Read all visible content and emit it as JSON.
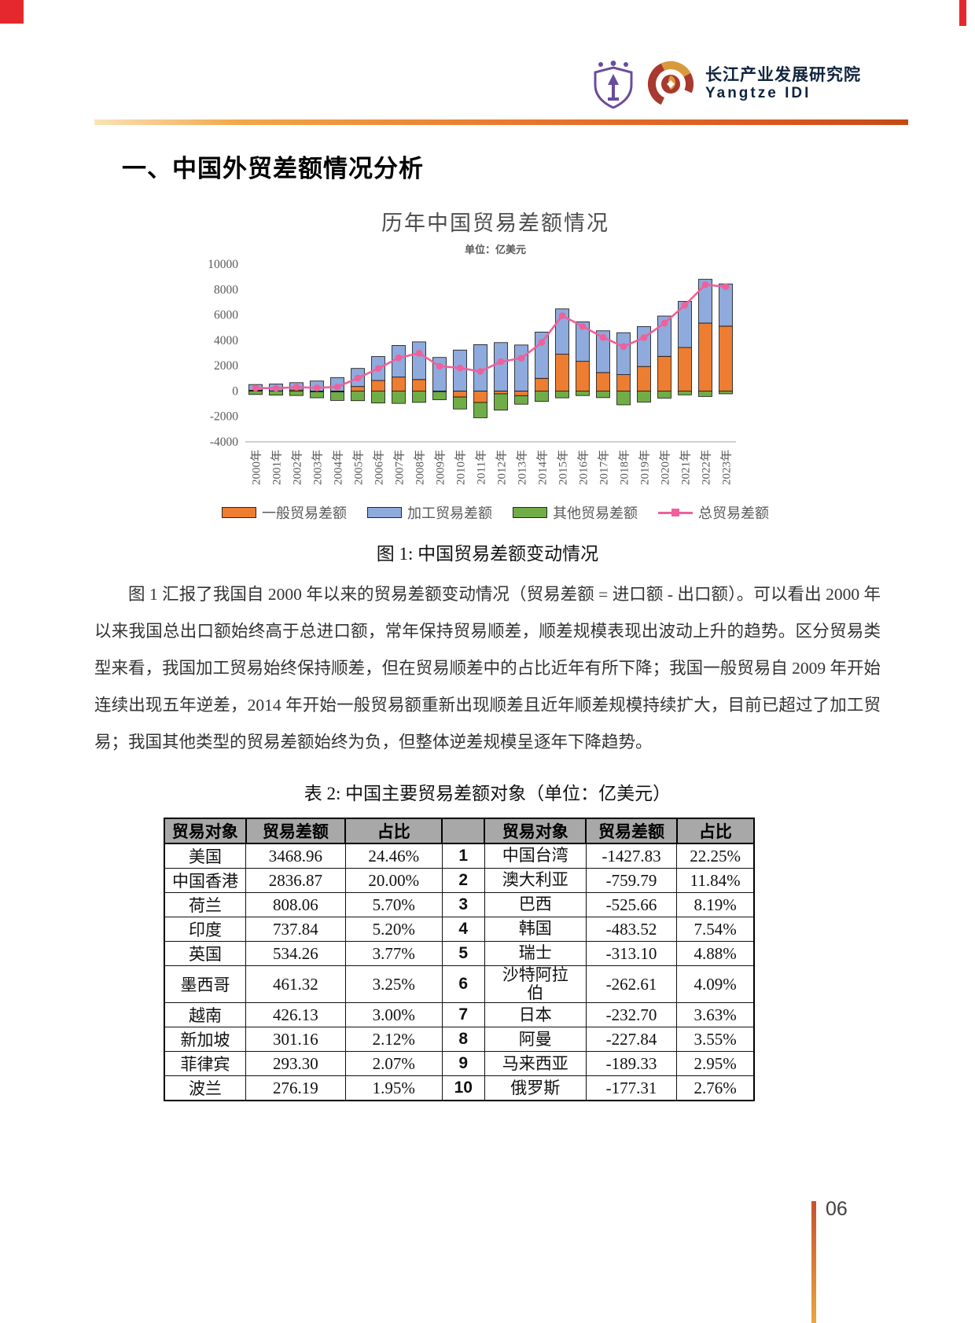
{
  "page": {
    "number": "06"
  },
  "header": {
    "org_cn": "长江产业发展研究院",
    "org_en": "Yangtze IDI"
  },
  "section_title": "一、中国外贸差额情况分析",
  "figure": {
    "caption": "图 1: 中国贸易差额变动情况"
  },
  "paragraph": "图 1 汇报了我国自 2000 年以来的贸易差额变动情况（贸易差额 = 进口额 - 出口额）。可以看出 2000 年以来我国总出口额始终高于总进口额，常年保持贸易顺差，顺差规模表现出波动上升的趋势。区分贸易类型来看，我国加工贸易始终保持顺差，但在贸易顺差中的占比近年有所下降；我国一般贸易自 2009 年开始连续出现五年逆差，2014 年开始一般贸易额重新出现顺差且近年顺差规模持续扩大，目前已超过了加工贸易；我国其他类型的贸易差额始终为负，但整体逆差规模呈逐年下降趋势。",
  "table": {
    "title": "表 2: 中国主要贸易差额对象（单位：亿美元）",
    "headers": [
      "贸易对象",
      "贸易差额",
      "占比",
      "",
      "贸易对象",
      "贸易差额",
      "占比"
    ],
    "rows": [
      [
        "美国",
        "3468.96",
        "24.46%",
        "1",
        "中国台湾",
        "-1427.83",
        "22.25%"
      ],
      [
        "中国香港",
        "2836.87",
        "20.00%",
        "2",
        "澳大利亚",
        "-759.79",
        "11.84%"
      ],
      [
        "荷兰",
        "808.06",
        "5.70%",
        "3",
        "巴西",
        "-525.66",
        "8.19%"
      ],
      [
        "印度",
        "737.84",
        "5.20%",
        "4",
        "韩国",
        "-483.52",
        "7.54%"
      ],
      [
        "英国",
        "534.26",
        "3.77%",
        "5",
        "瑞士",
        "-313.10",
        "4.88%"
      ],
      [
        "墨西哥",
        "461.32",
        "3.25%",
        "6",
        "沙特阿拉伯",
        "-262.61",
        "4.09%"
      ],
      [
        "越南",
        "426.13",
        "3.00%",
        "7",
        "日本",
        "-232.70",
        "3.63%"
      ],
      [
        "新加坡",
        "301.16",
        "2.12%",
        "8",
        "阿曼",
        "-227.84",
        "3.55%"
      ],
      [
        "菲律宾",
        "293.30",
        "2.07%",
        "9",
        "马来西亚",
        "-189.33",
        "2.95%"
      ],
      [
        "波兰",
        "276.19",
        "1.95%",
        "10",
        "俄罗斯",
        "-177.31",
        "2.76%"
      ]
    ]
  },
  "chart_data": {
    "type": "bar",
    "stacked": true,
    "title": "历年中国贸易差额情况",
    "subtitle": "单位：亿美元",
    "categories": [
      "2000年",
      "2001年",
      "2002年",
      "2003年",
      "2004年",
      "2005年",
      "2006年",
      "2007年",
      "2008年",
      "2009年",
      "2010年",
      "2011年",
      "2012年",
      "2013年",
      "2014年",
      "2015年",
      "2016年",
      "2017年",
      "2018年",
      "2019年",
      "2020年",
      "2021年",
      "2022年",
      "2023年"
    ],
    "series": [
      {
        "name": "一般贸易差额",
        "color": "#ED7D31",
        "values": [
          63,
          17,
          81,
          -56,
          -71,
          357,
          831,
          1099,
          906,
          -48,
          -473,
          -903,
          -219,
          -365,
          1000,
          2899,
          2340,
          1455,
          1290,
          1935,
          2734,
          3431,
          5354,
          5113
        ]
      },
      {
        "name": "加工贸易差额",
        "color": "#8FAADC",
        "values": [
          451,
          535,
          577,
          789,
          1063,
          1424,
          1889,
          2493,
          2968,
          2646,
          3229,
          3658,
          3817,
          3628,
          3646,
          3577,
          3115,
          3292,
          3307,
          3147,
          3175,
          3636,
          3456,
          3327
        ]
      },
      {
        "name": "其他贸易差额",
        "color": "#70AD47",
        "values": [
          -273,
          -326,
          -354,
          -478,
          -671,
          -761,
          -945,
          -974,
          -893,
          -637,
          -941,
          -1204,
          -1287,
          -673,
          -821,
          -538,
          -358,
          -522,
          -1088,
          -871,
          -559,
          -303,
          -430,
          -219
        ]
      }
    ],
    "line": {
      "name": "总贸易差额",
      "color": "#F0609A",
      "values": [
        241,
        226,
        304,
        255,
        321,
        1020,
        1775,
        2618,
        2981,
        1961,
        1815,
        1551,
        2311,
        2590,
        3825,
        5939,
        5097,
        4225,
        3509,
        4211,
        5350,
        6764,
        8380,
        8221
      ]
    },
    "ylim": [
      -4000,
      10000
    ],
    "ytick_step": 2000,
    "grid": false,
    "legend_position": "bottom"
  }
}
